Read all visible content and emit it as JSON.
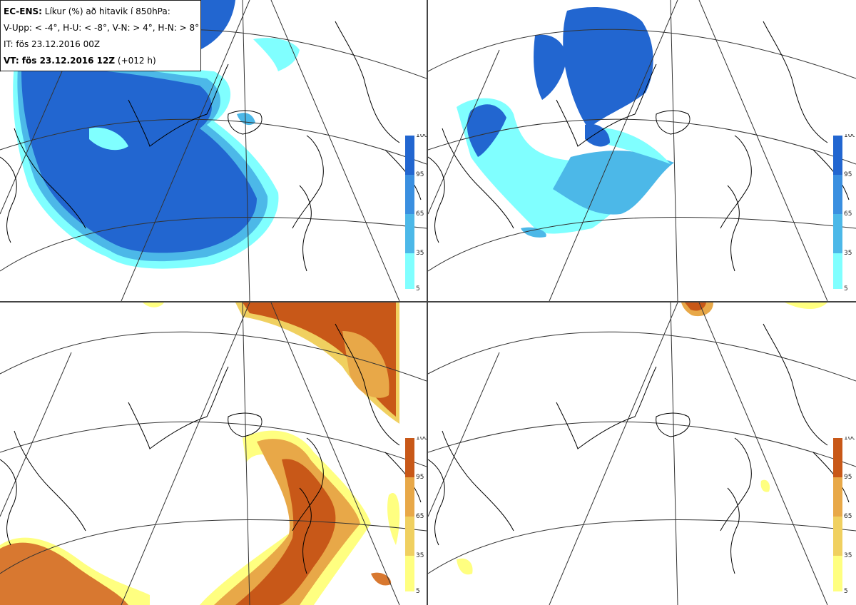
{
  "info": {
    "line1_bold": "EC-ENS:",
    "line1_rest": "Líkur (%) að hitavik í 850hPa:",
    "line2": "V-Upp: < -4°, H-U: < -8°, V-N: > 4°, H-N: > 8°",
    "line3": "IT: fös 23.12.2016 00Z",
    "line4_bold": "VT: fös 23.12.2016 12Z",
    "line4_rest": "(+012 h)"
  },
  "legend_ticks": [
    "100",
    "95",
    "65",
    "35",
    "5"
  ],
  "colors": {
    "cold": [
      "#80ffff",
      "#5ce6f0",
      "#4cb8e8",
      "#3a8fe0",
      "#2266d0"
    ],
    "warm": [
      "#ffff80",
      "#f0d060",
      "#e8a848",
      "#d87830",
      "#c85818"
    ],
    "coast": "#000000",
    "grid": "#333333"
  },
  "panels": [
    {
      "id": "v-upp",
      "scheme": "cold"
    },
    {
      "id": "h-u",
      "scheme": "cold"
    },
    {
      "id": "v-n",
      "scheme": "warm"
    },
    {
      "id": "h-n",
      "scheme": "warm"
    }
  ]
}
